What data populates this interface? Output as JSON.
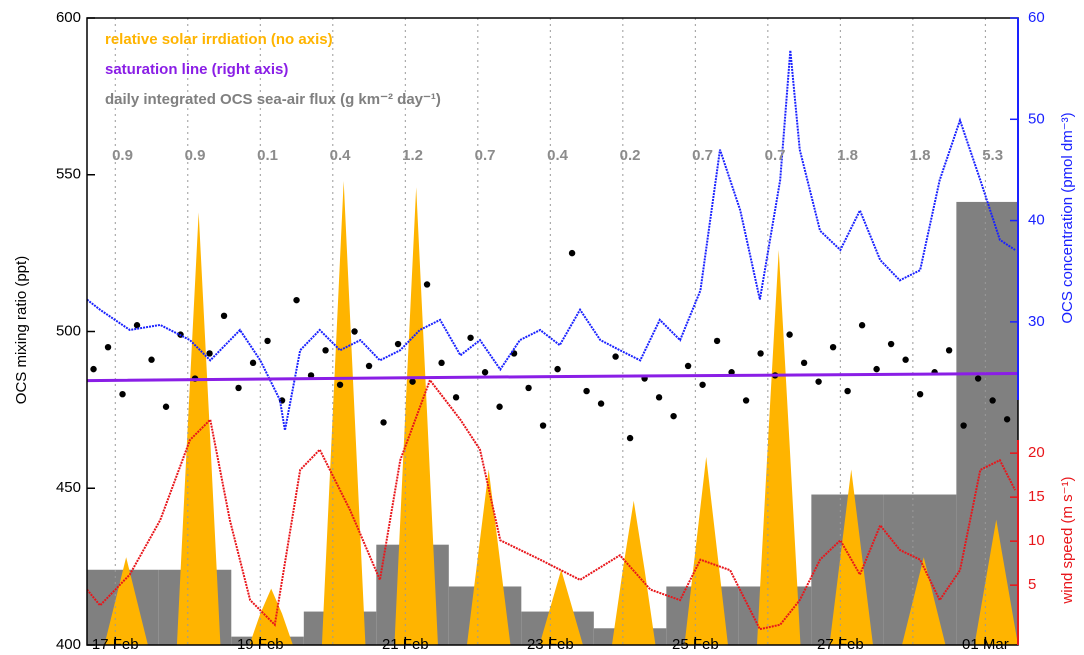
{
  "chart_data": {
    "type": "combo",
    "xlim": [
      16.61,
      29.45
    ],
    "xticks": [
      {
        "value": 17,
        "label": "17 Feb"
      },
      {
        "value": 19,
        "label": "19 Feb"
      },
      {
        "value": 21,
        "label": "21 Feb"
      },
      {
        "value": 23,
        "label": "23 Feb"
      },
      {
        "value": 25,
        "label": "25 Feb"
      },
      {
        "value": 27,
        "label": "27 Feb"
      },
      {
        "value": 29,
        "label": "01 Mar"
      }
    ],
    "day_lines": [
      17,
      18,
      19,
      20,
      21,
      22,
      23,
      24,
      25,
      26,
      27,
      28,
      29
    ],
    "ylim": [
      400,
      600
    ],
    "yticks": [
      400,
      450,
      500,
      550,
      600
    ],
    "ylabel": "OCS mixing ratio (ppt)",
    "y2lim": [
      -1.9,
      60
    ],
    "y2ticks": [
      30,
      40,
      50,
      60
    ],
    "y2label": "OCS concentration (pmol dm⁻³)",
    "y2color": "#1a22ff",
    "y3lim": [
      -1.8,
      69.45
    ],
    "y3ticks": [
      5,
      10,
      15,
      20
    ],
    "y3label": "wind speed (m s⁻¹)",
    "y3color": "#e8161b",
    "solar_lim": [
      0,
      1
    ],
    "flux_lim": [
      0,
      7.5
    ],
    "series": [
      {
        "name": "relative solar irrdiation (no axis)",
        "type": "area",
        "color": "#ffb400",
        "x": [
          16.85,
          17,
          17.15,
          17.3,
          17.45,
          17.85,
          18,
          18.15,
          18.3,
          18.45,
          18.85,
          19,
          19.15,
          19.3,
          19.45,
          19.85,
          20,
          20.15,
          20.3,
          20.45,
          20.85,
          21,
          21.15,
          21.3,
          21.45,
          21.85,
          22,
          22.15,
          22.3,
          22.45,
          22.85,
          23,
          23.15,
          23.3,
          23.45,
          23.85,
          24,
          24.15,
          24.3,
          24.45,
          24.85,
          25,
          25.15,
          25.3,
          25.45,
          25.85,
          26,
          26.15,
          26.3,
          26.45,
          26.85,
          27,
          27.15,
          27.3,
          27.45,
          27.85,
          28,
          28.15,
          28.3,
          28.45,
          28.85,
          29,
          29.15,
          29.3,
          29.45
        ],
        "values": [
          0,
          0.07,
          0.14,
          0.07,
          0,
          0,
          0.35,
          0.69,
          0.35,
          0,
          0,
          0.05,
          0.09,
          0.05,
          0,
          0,
          0.37,
          0.74,
          0.37,
          0,
          0,
          0.37,
          0.73,
          0.37,
          0,
          0,
          0.14,
          0.28,
          0.14,
          0,
          0,
          0.06,
          0.12,
          0.06,
          0,
          0,
          0.12,
          0.23,
          0.12,
          0,
          0,
          0.15,
          0.3,
          0.15,
          0,
          0,
          0.32,
          0.63,
          0.32,
          0,
          0,
          0.14,
          0.28,
          0.14,
          0,
          0,
          0.07,
          0.14,
          0.07,
          0,
          0,
          0.1,
          0.2,
          0.1,
          0
        ]
      },
      {
        "name": "saturation line (right axis)",
        "type": "line",
        "axis": "y2",
        "color": "#8a1ee6",
        "x": [
          16.61,
          23,
          29.45
        ],
        "values": [
          24.2,
          24.6,
          24.9
        ]
      },
      {
        "name": "daily integrated OCS sea-air flux (g km⁻² day⁻¹)",
        "type": "step",
        "color": "#808080",
        "bins": [
          16.6,
          17.6,
          18.6,
          19.6,
          20.6,
          21.6,
          22.6,
          23.6,
          24.6,
          25.6,
          26.6,
          27.6,
          28.6,
          29.6
        ],
        "values": [
          0.9,
          0.9,
          0.1,
          0.4,
          1.2,
          0.7,
          0.4,
          0.2,
          0.7,
          0.7,
          1.8,
          1.8,
          5.3
        ]
      },
      {
        "type": "scatter",
        "color": "#000000",
        "x": [
          16.7,
          16.9,
          17.1,
          17.3,
          17.5,
          17.7,
          17.9,
          18.1,
          18.3,
          18.5,
          18.7,
          18.9,
          19.1,
          19.3,
          19.5,
          19.7,
          19.9,
          20.1,
          20.3,
          20.5,
          20.7,
          20.9,
          21.1,
          21.3,
          21.5,
          21.7,
          21.9,
          22.1,
          22.3,
          22.5,
          22.7,
          22.9,
          23.1,
          23.3,
          23.5,
          23.7,
          23.9,
          24.1,
          24.3,
          24.5,
          24.7,
          24.9,
          25.1,
          25.3,
          25.5,
          25.7,
          25.9,
          26.1,
          26.3,
          26.5,
          26.7,
          26.9,
          27.1,
          27.3,
          27.5,
          27.7,
          27.9,
          28.1,
          28.3,
          28.5,
          28.7,
          28.9,
          29.1,
          29.3
        ],
        "values": [
          488,
          495,
          480,
          502,
          491,
          476,
          499,
          485,
          493,
          505,
          482,
          490,
          497,
          478,
          510,
          486,
          494,
          483,
          500,
          489,
          471,
          496,
          484,
          515,
          490,
          479,
          498,
          487,
          476,
          493,
          482,
          470,
          488,
          525,
          481,
          477,
          492,
          466,
          485,
          479,
          473,
          489,
          483,
          497,
          487,
          478,
          493,
          486,
          499,
          490,
          484,
          495,
          481,
          502,
          488,
          496,
          491,
          480,
          487,
          494,
          470,
          485,
          478,
          472
        ]
      },
      {
        "type": "line",
        "axis": "y2",
        "color": "#1a22ff",
        "x": [
          16.61,
          16.79,
          17.2,
          17.62,
          18.03,
          18.31,
          18.72,
          19.0,
          19.27,
          19.34,
          19.55,
          19.82,
          20.1,
          20.38,
          20.65,
          20.93,
          21.2,
          21.48,
          21.76,
          22.03,
          22.31,
          22.58,
          22.86,
          23.13,
          23.41,
          23.69,
          23.96,
          24.24,
          24.51,
          24.79,
          25.07,
          25.34,
          25.62,
          25.89,
          26.17,
          26.31,
          26.44,
          26.72,
          27.0,
          27.27,
          27.55,
          27.82,
          28.1,
          28.37,
          28.65,
          28.93,
          29.2,
          29.41
        ],
        "values": [
          32.2,
          31.2,
          29.2,
          29.7,
          28.2,
          26.2,
          29.2,
          26.2,
          22.3,
          19.3,
          27.2,
          29.2,
          27.2,
          28.2,
          26.2,
          27.2,
          29.2,
          30.2,
          26.7,
          28.2,
          25.3,
          28.2,
          29.2,
          27.7,
          31.2,
          28.2,
          27.2,
          26.2,
          30.2,
          28.2,
          33.1,
          47,
          41,
          32.2,
          44,
          56.8,
          47,
          39,
          37.1,
          41,
          36.1,
          34.1,
          35.1,
          44,
          49.9,
          44,
          38.1,
          37.1
        ]
      },
      {
        "type": "line",
        "axis": "y3",
        "color": "#e8161b",
        "x": [
          16.61,
          16.79,
          17.2,
          17.62,
          18.03,
          18.31,
          18.58,
          18.86,
          19.2,
          19.55,
          19.82,
          20.24,
          20.65,
          20.93,
          21.34,
          21.76,
          22.03,
          22.31,
          22.86,
          23.41,
          23.96,
          24.38,
          24.79,
          25.07,
          25.48,
          25.89,
          26.17,
          26.44,
          26.72,
          27.0,
          27.27,
          27.55,
          27.82,
          28.1,
          28.37,
          28.65,
          28.93,
          29.2,
          29.41
        ],
        "values": [
          4.5,
          2.7,
          6.2,
          12.4,
          21.5,
          23.8,
          12.4,
          3.3,
          0.5,
          18.1,
          20.4,
          13.5,
          5.6,
          19.2,
          28.3,
          23.8,
          20.4,
          10.1,
          7.9,
          5.6,
          8.4,
          4.5,
          3.3,
          7.9,
          6.7,
          0,
          0.5,
          3.3,
          7.9,
          10.1,
          6.2,
          11.8,
          9,
          7.9,
          3.3,
          6.7,
          18.1,
          19.2,
          15.8
        ]
      }
    ]
  }
}
